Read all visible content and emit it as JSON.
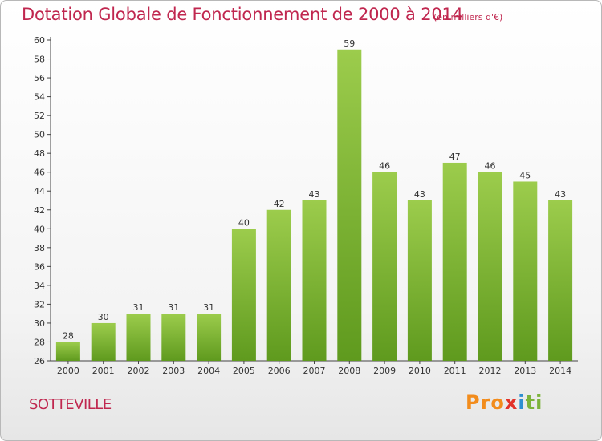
{
  "chart_data": {
    "type": "bar",
    "title": "Dotation Globale de Fonctionnement de 2000 à 2014",
    "subtitle": "(en milliers d'€)",
    "xlabel": "",
    "ylabel": "",
    "categories": [
      "2000",
      "2001",
      "2002",
      "2003",
      "2004",
      "2005",
      "2006",
      "2007",
      "2008",
      "2009",
      "2010",
      "2011",
      "2012",
      "2013",
      "2014"
    ],
    "values": [
      28,
      30,
      31,
      31,
      31,
      40,
      42,
      43,
      59,
      46,
      43,
      47,
      46,
      45,
      43
    ],
    "ylim": [
      26,
      60
    ],
    "ytick_step": 2,
    "grid": false,
    "bar_color_top": "#9ccc4c",
    "bar_color_bottom": "#5f9a1e"
  },
  "location": "SOTTEVILLE",
  "logo": {
    "parts": [
      "Pro",
      "x",
      "i",
      "ti"
    ]
  },
  "colors": {
    "title": "#c0274f",
    "axis": "#444444"
  }
}
